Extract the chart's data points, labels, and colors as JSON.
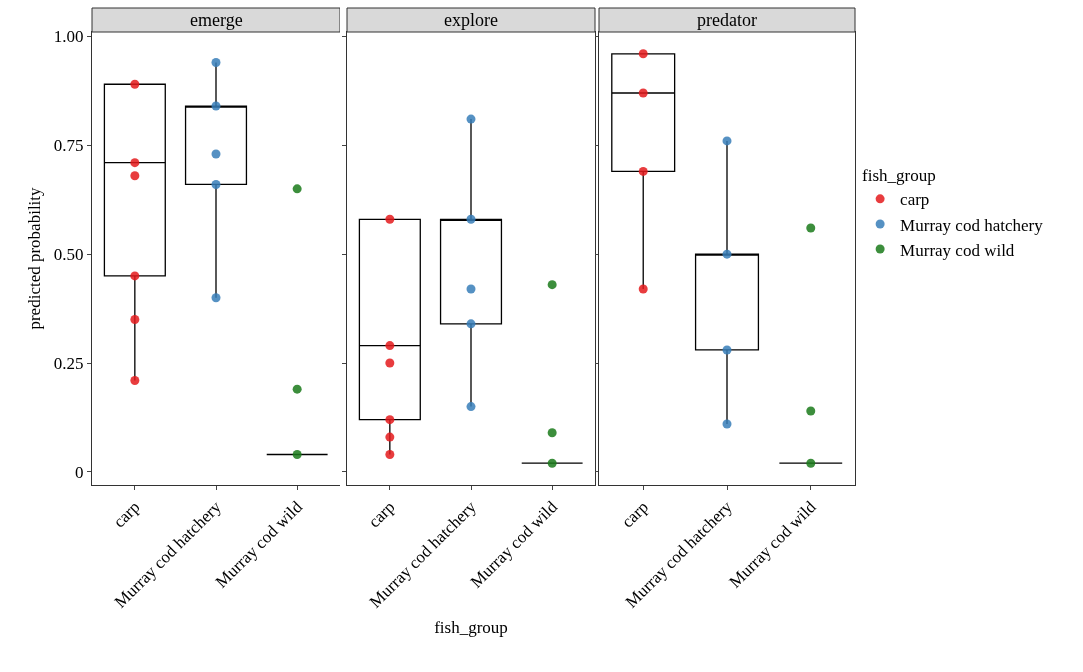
{
  "chart_data": [
    {
      "type": "box",
      "title": "emerge",
      "ylabel": "predicted probability",
      "categories": [
        "carp",
        "Murray cod hatchery",
        "Murray cod wild"
      ],
      "color": "#000000",
      "ylim": [
        -0.03,
        1.01
      ],
      "yticks": [
        {
          "value": 0,
          "label": "0"
        },
        {
          "value": 0.25,
          "label": "0.25"
        },
        {
          "value": 0.5,
          "label": "0.50"
        },
        {
          "value": 0.75,
          "label": "0.75"
        },
        {
          "value": 1,
          "label": "1.00"
        }
      ],
      "grid": false,
      "legend": false,
      "marker": "circle",
      "boxes": [
        {
          "low": 0.21,
          "q1": 0.45,
          "median": 0.71,
          "q3": 0.89,
          "high": 0.89
        },
        {
          "low": 0.4,
          "q1": 0.66,
          "median": 0.84,
          "q3": 0.84,
          "high": 0.94
        },
        {
          "low": 0.04,
          "q1": 0.04,
          "median": 0.04,
          "q3": 0.04,
          "high": 0.04
        }
      ],
      "series": [
        {
          "type": "scatter",
          "color": "#e41a1c",
          "x": [
            "carp",
            "carp",
            "carp",
            "carp",
            "carp",
            "carp"
          ],
          "values": [
            0.89,
            0.71,
            0.68,
            0.45,
            0.35,
            0.21
          ]
        },
        {
          "type": "scatter",
          "color": "#377eb8",
          "x": [
            "Murray cod hatchery",
            "Murray cod hatchery",
            "Murray cod hatchery",
            "Murray cod hatchery",
            "Murray cod hatchery"
          ],
          "values": [
            0.94,
            0.84,
            0.73,
            0.66,
            0.4
          ]
        },
        {
          "type": "scatter",
          "color": "#1a7a1a",
          "x": [
            "Murray cod wild",
            "Murray cod wild",
            "Murray cod wild"
          ],
          "values": [
            0.65,
            0.19,
            0.04
          ]
        }
      ]
    },
    {
      "type": "box",
      "title": "explore",
      "xlabel": "fish_group",
      "tick_labels": "x",
      "categories": [
        "carp",
        "Murray cod hatchery",
        "Murray cod wild"
      ],
      "color": "#000000",
      "ylim": [
        -0.03,
        1.01
      ],
      "yticks": [
        0,
        0.25,
        0.5,
        0.75,
        1
      ],
      "grid": false,
      "legend": false,
      "marker": "circle",
      "boxes": [
        {
          "low": 0.04,
          "q1": 0.12,
          "median": 0.29,
          "q3": 0.58,
          "high": 0.58
        },
        {
          "low": 0.15,
          "q1": 0.34,
          "median": 0.58,
          "q3": 0.58,
          "high": 0.81
        },
        {
          "low": 0.02,
          "q1": 0.02,
          "median": 0.02,
          "q3": 0.02,
          "high": 0.02
        }
      ],
      "series": [
        {
          "type": "scatter",
          "color": "#e41a1c",
          "x": [
            "carp",
            "carp",
            "carp",
            "carp",
            "carp",
            "carp"
          ],
          "values": [
            0.58,
            0.29,
            0.25,
            0.12,
            0.08,
            0.04
          ]
        },
        {
          "type": "scatter",
          "color": "#377eb8",
          "x": [
            "Murray cod hatchery",
            "Murray cod hatchery",
            "Murray cod hatchery",
            "Murray cod hatchery",
            "Murray cod hatchery"
          ],
          "values": [
            0.81,
            0.58,
            0.42,
            0.34,
            0.15
          ]
        },
        {
          "type": "scatter",
          "color": "#1a7a1a",
          "x": [
            "Murray cod wild",
            "Murray cod wild",
            "Murray cod wild"
          ],
          "values": [
            0.43,
            0.09,
            0.02
          ]
        }
      ]
    },
    {
      "type": "box",
      "title": "predator",
      "legend_title": "fish_group",
      "tick_labels": "x",
      "categories": [
        "carp",
        "Murray cod hatchery",
        "Murray cod wild"
      ],
      "color": "#000000",
      "ylim": [
        -0.03,
        1.01
      ],
      "yticks": [
        0,
        0.25,
        0.5,
        0.75,
        1
      ],
      "grid": false,
      "legend": "right",
      "marker": "circle",
      "boxes": [
        {
          "low": 0.42,
          "q1": 0.69,
          "median": 0.87,
          "q3": 0.96,
          "high": 0.96
        },
        {
          "low": 0.11,
          "q1": 0.28,
          "median": 0.5,
          "q3": 0.5,
          "high": 0.76
        },
        {
          "low": 0.02,
          "q1": 0.02,
          "median": 0.02,
          "q3": 0.02,
          "high": 0.02
        }
      ],
      "series": [
        {
          "type": "scatter",
          "name": "carp",
          "color": "#e41a1c",
          "x": [
            "carp",
            "carp",
            "carp",
            "carp"
          ],
          "values": [
            0.96,
            0.87,
            0.69,
            0.42
          ]
        },
        {
          "type": "scatter",
          "name": "Murray cod hatchery",
          "color": "#377eb8",
          "x": [
            "Murray cod hatchery",
            "Murray cod hatchery",
            "Murray cod hatchery",
            "Murray cod hatchery"
          ],
          "values": [
            0.76,
            0.5,
            0.28,
            0.11
          ]
        },
        {
          "type": "scatter",
          "name": "Murray cod wild",
          "color": "#1a7a1a",
          "x": [
            "Murray cod wild",
            "Murray cod wild",
            "Murray cod wild"
          ],
          "values": [
            0.56,
            0.14,
            0.02
          ]
        }
      ]
    }
  ]
}
